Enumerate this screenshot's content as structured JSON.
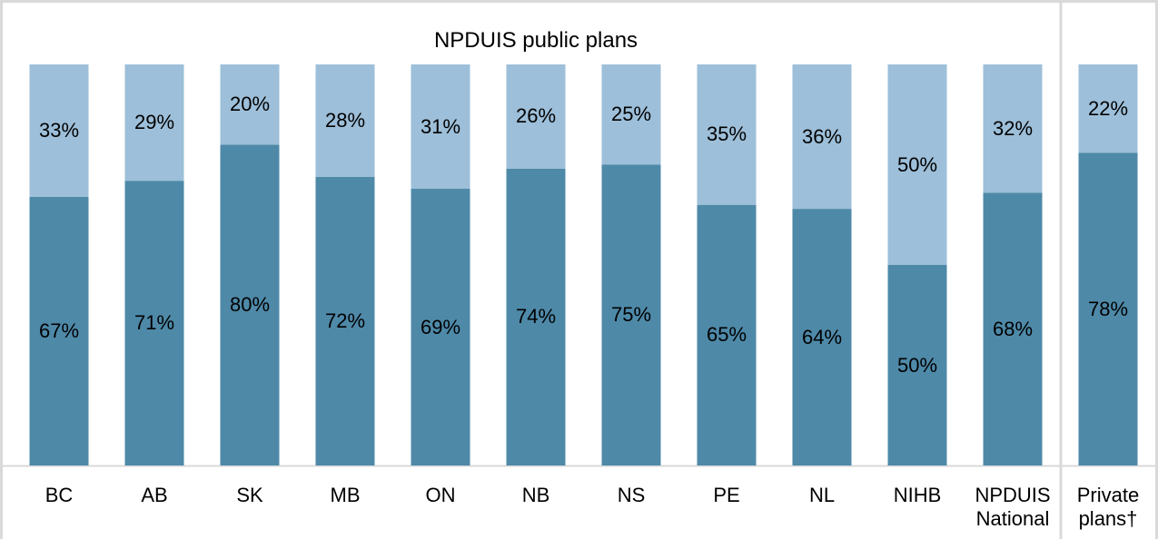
{
  "chart_data": {
    "type": "stacked_bar",
    "title": "NPDUIS public plans",
    "categories": [
      "BC",
      "AB",
      "SK",
      "MB",
      "ON",
      "NB",
      "NS",
      "PE",
      "NL",
      "NIHB",
      "NPDUIS\nNational",
      "Private\nplans†"
    ],
    "ylim": [
      0,
      100
    ],
    "series": [
      {
        "color": "#4e89a8",
        "values": [
          67,
          71,
          80,
          72,
          69,
          74,
          75,
          65,
          64,
          50,
          68,
          78
        ],
        "value_labels": [
          "67%",
          "71%",
          "80%",
          "72%",
          "69%",
          "74%",
          "75%",
          "65%",
          "64%",
          "50%",
          "68%",
          "78%"
        ]
      },
      {
        "color": "#9dbfd9",
        "values": [
          33,
          29,
          20,
          28,
          31,
          26,
          25,
          35,
          36,
          50,
          32,
          22
        ],
        "value_labels": [
          "33%",
          "29%",
          "20%",
          "28%",
          "31%",
          "26%",
          "25%",
          "35%",
          "36%",
          "50%",
          "32%",
          "22%"
        ]
      }
    ]
  }
}
